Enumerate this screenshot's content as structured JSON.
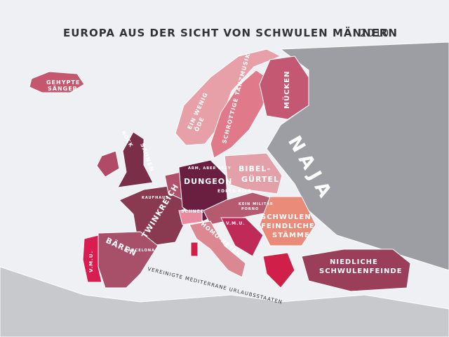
{
  "title": {
    "main": "EUROPA AUS DER SICHT VON SCHWULEN MÄNNERN",
    "year": "2010"
  },
  "regions": [
    {
      "lines": [
        "GEHYPTE",
        "SÄNGER"
      ]
    },
    {
      "lines": [
        "EIN WENIG",
        "ÖDE"
      ]
    },
    {
      "lines": [
        "SCHROTTIGE TANZMUSIK"
      ]
    },
    {
      "lines": [
        "MÜCKEN"
      ]
    },
    {
      "lines": [
        "NAJA"
      ]
    },
    {
      "lines": [
        "ROCK"
      ]
    },
    {
      "lines": [
        "SAUNEN"
      ]
    },
    {
      "lines": [
        "DUNGEON"
      ]
    },
    {
      "lines": [
        "ARM, ABER SEXY"
      ]
    },
    {
      "lines": [
        "BIBEL-",
        "GÜRTEL"
      ]
    },
    {
      "lines": [
        "EDLES BIER"
      ]
    },
    {
      "lines": [
        "KEIN MILITÄR",
        "PORNO"
      ]
    },
    {
      "lines": [
        "TWINKREICH"
      ]
    },
    {
      "lines": [
        "KAUFHAUS"
      ]
    },
    {
      "lines": [
        "SCHNEE"
      ]
    },
    {
      "lines": [
        "HOMO-HETEN"
      ]
    },
    {
      "lines": [
        "V.M.U."
      ]
    },
    {
      "lines": [
        "SCHWULEN-",
        "FEINDLICHE",
        "STÄMME"
      ]
    },
    {
      "lines": [
        "NIEDLICHE",
        "SCHWULENFEINDE"
      ]
    },
    {
      "lines": [
        "BÄREN"
      ]
    },
    {
      "lines": [
        "V.M.U."
      ]
    },
    {
      "lines": [
        "BARCELONA"
      ]
    },
    {
      "lines": [
        "VEREINIGTE MEDITERRANE URLAUBSSTAATEN"
      ]
    }
  ]
}
